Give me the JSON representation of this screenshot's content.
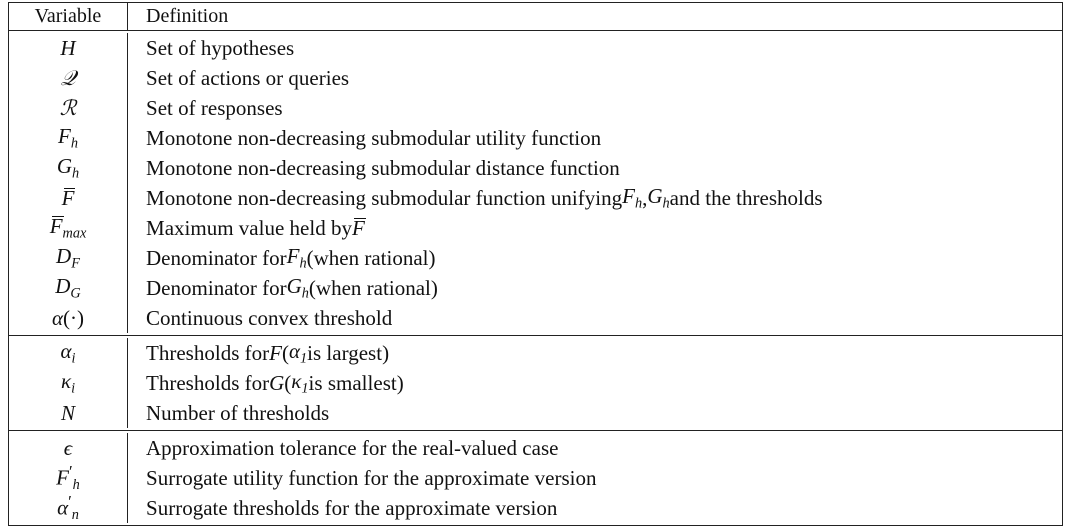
{
  "table": {
    "headers": {
      "variable": "Variable",
      "definition": "Definition"
    },
    "groups": [
      {
        "rows": [
          {
            "var": "H",
            "def": "Set of hypotheses"
          },
          {
            "var": "𝒬",
            "def": "Set of actions or queries"
          },
          {
            "var": "ℛ",
            "def": "Set of responses"
          },
          {
            "var": "F_h",
            "def": "Monotone non-decreasing submodular utility function"
          },
          {
            "var": "G_h",
            "def": "Monotone non-decreasing submodular distance function"
          },
          {
            "var": "F̄",
            "def": "Monotone non-decreasing submodular function unifying F_h, G_h and the thresholds"
          },
          {
            "var": "F̄_max",
            "def": "Maximum value held by F̄"
          },
          {
            "var": "D_F",
            "def": "Denominator for F_h (when rational)"
          },
          {
            "var": "D_G",
            "def": "Denominator for G_h (when rational)"
          },
          {
            "var": "α(·)",
            "def": "Continuous convex threshold"
          }
        ]
      },
      {
        "rows": [
          {
            "var": "α_i",
            "def": "Thresholds for F (α_1 is largest)"
          },
          {
            "var": "κ_i",
            "def": "Thresholds for G (κ_1 is smallest)"
          },
          {
            "var": "N",
            "def": "Number of thresholds"
          }
        ]
      },
      {
        "rows": [
          {
            "var": "ϵ",
            "def": "Approximation tolerance for the real-valued case"
          },
          {
            "var": "F′_h",
            "def": "Surrogate utility function for the approximate version"
          },
          {
            "var": "α′_n",
            "def": "Surrogate thresholds for the approximate version"
          }
        ]
      }
    ]
  }
}
